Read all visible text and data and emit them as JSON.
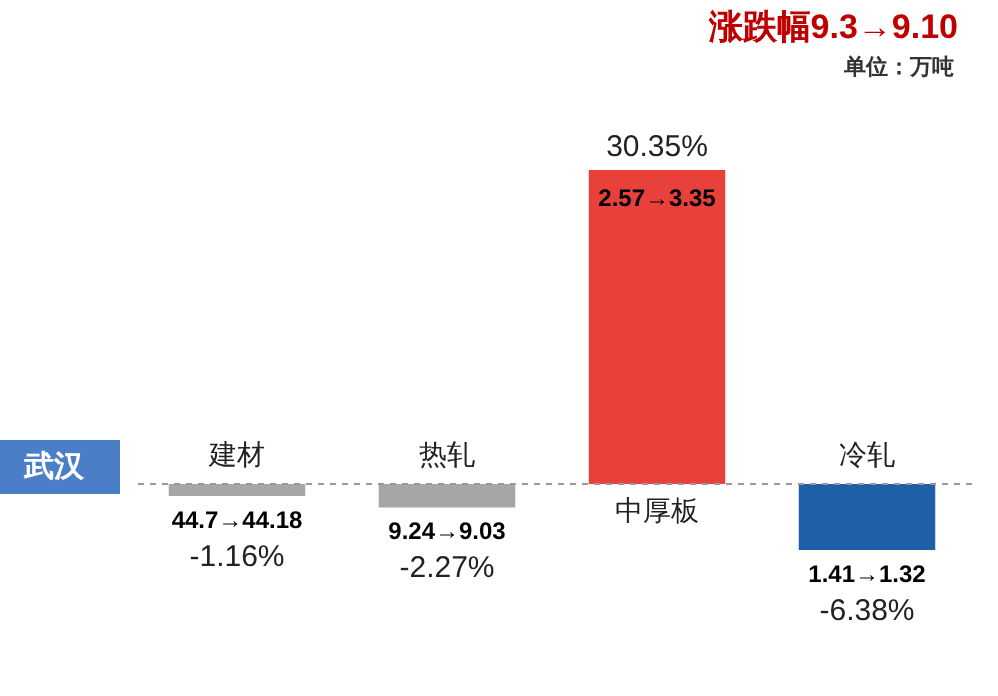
{
  "chart_data": {
    "type": "bar",
    "title": "涨跌幅9.3→9.10",
    "subtitle": "单位：万吨",
    "categories": [
      "建材",
      "热轧",
      "中厚板",
      "冷轧"
    ],
    "values": [
      -1.16,
      -2.27,
      30.35,
      -6.38
    ],
    "colors": [
      "#a6a6a6",
      "#a6a6a6",
      "#e8413c",
      "#1f5fa8"
    ],
    "value_labels": [
      "-1.16%",
      "-2.27%",
      "30.35%",
      "-6.38%"
    ],
    "annotations": [
      "武汉",
      {
        "text": "44.7→44.18",
        "x": "建材",
        "y": -1.16
      },
      {
        "text": "9.24→9.03",
        "x": "热轧",
        "y": -2.27
      },
      {
        "text": "2.57→3.35",
        "x": "中厚板",
        "y": 30.35
      },
      {
        "text": "1.41→1.32",
        "x": "冷轧",
        "y": -6.38
      }
    ],
    "ref_lines": [
      {
        "axis": "y",
        "value": 0,
        "color": "#999999",
        "line_style": "dashed"
      }
    ]
  }
}
